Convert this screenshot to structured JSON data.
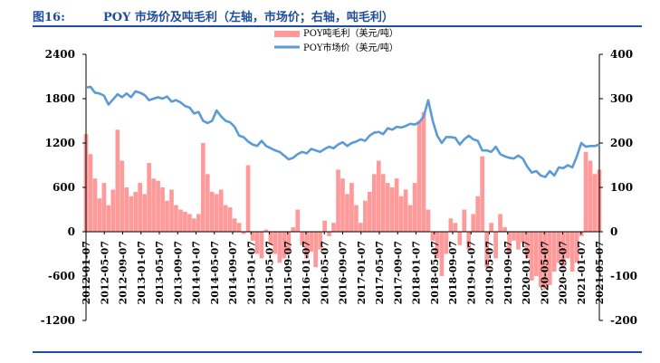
{
  "header": {
    "figure_no": "图16:",
    "title": "POY 市场价及吨毛利（左轴，市场价；右轴，吨毛利）"
  },
  "colors": {
    "bar": "#ff9a9a",
    "line": "#5b9bd5",
    "title": "#1f4e9a",
    "axis": "#000000"
  },
  "chart_data": {
    "type": "bar+line",
    "legend": [
      {
        "name": "POY吨毛利（美元/吨）",
        "kind": "bar"
      },
      {
        "name": "POY市场价（美元/吨）",
        "kind": "line"
      }
    ],
    "legend_position": "top-center",
    "left_axis": {
      "ticks": [
        "2400",
        "1800",
        "1200",
        "600",
        "0",
        "-600",
        "-1200"
      ],
      "range": [
        -1200,
        2400
      ]
    },
    "right_axis": {
      "ticks": [
        "400",
        "300",
        "200",
        "100",
        "0",
        "-100",
        "-200"
      ],
      "range": [
        -200,
        400
      ]
    },
    "x_labels": [
      "2012-01-07",
      "2012-05-07",
      "2012-09-07",
      "2013-01-07",
      "2013-05-07",
      "2013-09-07",
      "2014-01-07",
      "2014-05-07",
      "2014-09-07",
      "2015-01-07",
      "2015-05-07",
      "2015-09-07",
      "2016-01-07",
      "2016-05-07",
      "2016-09-07",
      "2017-01-07",
      "2017-05-07",
      "2017-09-07",
      "2018-01-07",
      "2018-05-07",
      "2018-09-07",
      "2019-01-07",
      "2019-05-07",
      "2019-09-07",
      "2020-01-07",
      "2020-05-07",
      "2020-09-07",
      "2021-01-07",
      "2021-05-07"
    ],
    "x_range": [
      0,
      114
    ],
    "line_series": {
      "name": "POY市场价（美元/吨）",
      "x": [
        0,
        1,
        2,
        3,
        4,
        5,
        6,
        7,
        8,
        9,
        10,
        11,
        12,
        13,
        14,
        15,
        16,
        17,
        18,
        19,
        20,
        21,
        22,
        23,
        24,
        25,
        26,
        27,
        28,
        29,
        30,
        31,
        32,
        33,
        34,
        35,
        36,
        37,
        38,
        39,
        40,
        41,
        42,
        43,
        44,
        45,
        46,
        47,
        48,
        49,
        50,
        51,
        52,
        53,
        54,
        55,
        56,
        57,
        58,
        59,
        60,
        61,
        62,
        63,
        64,
        65,
        66,
        67,
        68,
        69,
        70,
        71,
        72,
        73,
        74,
        75,
        76,
        77,
        78,
        79,
        80,
        81,
        82,
        83,
        84,
        85,
        86,
        87,
        88,
        89,
        90,
        91,
        92,
        93,
        94,
        95,
        96,
        97,
        98,
        99,
        100,
        101,
        102,
        103,
        104,
        105,
        106,
        107,
        108,
        109,
        110,
        111,
        112,
        113,
        114
      ],
      "values": [
        1950,
        1960,
        1880,
        1870,
        1840,
        1720,
        1790,
        1860,
        1820,
        1870,
        1820,
        1900,
        1880,
        1850,
        1780,
        1800,
        1820,
        1800,
        1830,
        1760,
        1780,
        1750,
        1700,
        1680,
        1600,
        1620,
        1500,
        1470,
        1500,
        1640,
        1560,
        1500,
        1480,
        1420,
        1300,
        1280,
        1220,
        1180,
        1160,
        1230,
        1160,
        1130,
        1100,
        1080,
        1030,
        980,
        1000,
        1050,
        1080,
        1060,
        1120,
        1100,
        1080,
        1120,
        1150,
        1130,
        1180,
        1210,
        1160,
        1200,
        1220,
        1250,
        1230,
        1300,
        1340,
        1350,
        1320,
        1400,
        1380,
        1420,
        1410,
        1430,
        1460,
        1450,
        1480,
        1560,
        1780,
        1500,
        1300,
        1200,
        1280,
        1280,
        1270,
        1180,
        1250,
        1300,
        1250,
        1230,
        1100,
        1100,
        1080,
        1150,
        1050,
        1020,
        1000,
        990,
        1030,
        990,
        880,
        800,
        820,
        760,
        740,
        820,
        760,
        870,
        860,
        900,
        870,
        1020,
        1200,
        1150,
        1160,
        1160,
        1180
      ]
    },
    "bar_series": {
      "name": "POY吨毛利（美元/吨）",
      "x": [
        0,
        1,
        2,
        3,
        4,
        5,
        6,
        7,
        8,
        9,
        10,
        11,
        12,
        13,
        14,
        15,
        16,
        17,
        18,
        19,
        20,
        21,
        22,
        23,
        24,
        25,
        26,
        27,
        28,
        29,
        30,
        31,
        32,
        33,
        34,
        35,
        36,
        37,
        38,
        39,
        40,
        41,
        42,
        43,
        44,
        45,
        46,
        47,
        48,
        49,
        50,
        51,
        52,
        53,
        54,
        55,
        56,
        57,
        58,
        59,
        60,
        61,
        62,
        63,
        64,
        65,
        66,
        67,
        68,
        69,
        70,
        71,
        72,
        73,
        74,
        75,
        76,
        77,
        78,
        79,
        80,
        81,
        82,
        83,
        84,
        85,
        86,
        87,
        88,
        89,
        90,
        91,
        92,
        93,
        94,
        95,
        96,
        97,
        98,
        99,
        100,
        101,
        102,
        103,
        104,
        105,
        106,
        107,
        108,
        109,
        110,
        111,
        112,
        113,
        114
      ],
      "values": [
        220,
        175,
        120,
        75,
        110,
        60,
        95,
        230,
        160,
        100,
        80,
        90,
        110,
        85,
        155,
        120,
        115,
        100,
        70,
        95,
        60,
        50,
        45,
        40,
        30,
        40,
        200,
        130,
        90,
        85,
        95,
        60,
        55,
        30,
        20,
        -5,
        150,
        -20,
        -50,
        -60,
        5,
        -30,
        -50,
        -70,
        -60,
        -45,
        10,
        50,
        -30,
        -60,
        -45,
        -80,
        -40,
        25,
        -10,
        20,
        140,
        120,
        85,
        110,
        60,
        20,
        70,
        90,
        130,
        160,
        130,
        110,
        100,
        120,
        80,
        95,
        60,
        110,
        250,
        270,
        50,
        -20,
        -60,
        -100,
        -50,
        30,
        20,
        -30,
        50,
        -40,
        40,
        80,
        170,
        -80,
        20,
        -60,
        40,
        10,
        -50,
        -20,
        -40,
        -25,
        -60,
        -110,
        -100,
        -125,
        -130,
        -120,
        -90,
        -70,
        -80,
        -60,
        -90,
        -70,
        -10,
        180,
        160,
        130,
        140
      ]
    }
  }
}
